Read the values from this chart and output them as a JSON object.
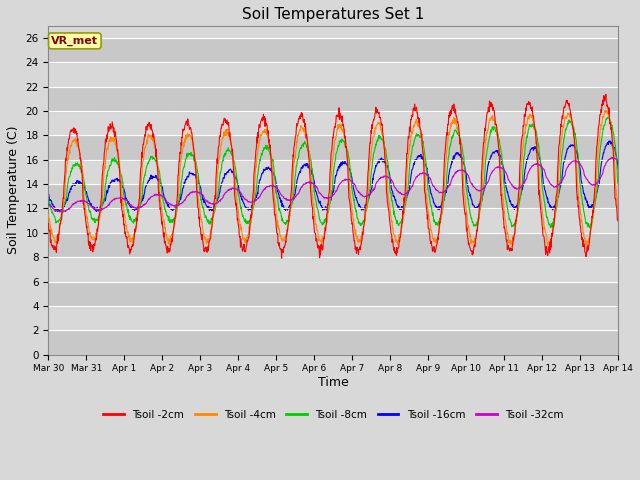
{
  "title": "Soil Temperatures Set 1",
  "xlabel": "Time",
  "ylabel": "Soil Temperature (C)",
  "annotation": "VR_met",
  "ylim": [
    0,
    27
  ],
  "yticks": [
    0,
    2,
    4,
    6,
    8,
    10,
    12,
    14,
    16,
    18,
    20,
    22,
    24,
    26
  ],
  "bg_color": "#d8d8d8",
  "grid_color": "#ffffff",
  "series_colors": [
    "#ff0000",
    "#ff8800",
    "#00cc00",
    "#0000ff",
    "#cc00cc"
  ],
  "series_labels": [
    "Tsoil -2cm",
    "Tsoil -4cm",
    "Tsoil -8cm",
    "Tsoil -16cm",
    "Tsoil -32cm"
  ],
  "tick_labels": [
    "Mar 30",
    "Mar 31",
    "Apr 1",
    "Apr 2",
    "Apr 3",
    "Apr 4",
    "Apr 5",
    "Apr 6",
    "Apr 7",
    "Apr 8",
    "Apr 9",
    "Apr 10",
    "Apr 11",
    "Apr 12",
    "Apr 13",
    "Apr 14"
  ]
}
